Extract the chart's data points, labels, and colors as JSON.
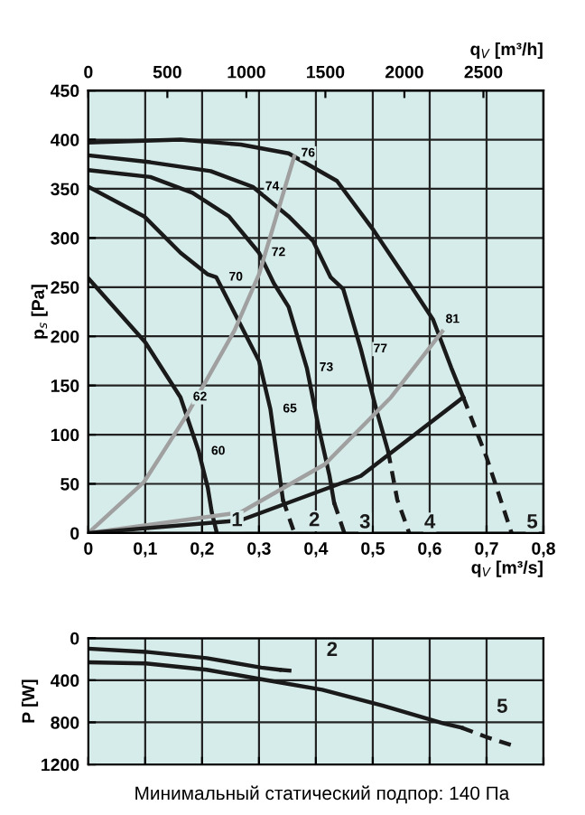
{
  "chart_data": [
    {
      "type": "line",
      "xlabel": "q$_{V}$ [m³/s]",
      "x2label": "q$_{V}$ [m³/h]",
      "ylabel": "p$_{s}$ [Pa]",
      "xlim": [
        0,
        0.8
      ],
      "ylim": [
        0,
        450
      ],
      "xticks": [
        0,
        {
          "value": 0.1,
          "label": "0,1"
        },
        {
          "value": 0.2,
          "label": "0,2"
        },
        {
          "value": 0.3,
          "label": "0,3"
        },
        {
          "value": 0.4,
          "label": "0,4"
        },
        {
          "value": 0.5,
          "label": "0,5"
        },
        {
          "value": 0.6,
          "label": "0,6"
        },
        {
          "value": 0.7,
          "label": "0,7"
        },
        {
          "value": 0.8,
          "label": "0,8"
        }
      ],
      "x2lim": [
        0,
        2880
      ],
      "x2ticks": [
        0,
        500,
        1000,
        1500,
        2000,
        2500
      ],
      "yticks": [
        0,
        50,
        100,
        150,
        200,
        250,
        300,
        350,
        400,
        450
      ],
      "grid": true,
      "marker": "none",
      "series": [
        {
          "name": "1",
          "color": "#1a1a1a",
          "x": [
            0,
            0.1,
            0.162,
            0.194,
            0.21,
            0.217,
            0.225
          ],
          "values": [
            259,
            194,
            138,
            83,
            46,
            21,
            2
          ]
        },
        {
          "color": "#1a1a1a",
          "x": [
            0,
            0.098,
            0.162,
            0.21,
            0.225,
            0.3,
            0.32,
            0.342
          ],
          "values": [
            352,
            322,
            285,
            263,
            260,
            175,
            126,
            34
          ]
        },
        {
          "name": "2",
          "color": "#1a1a1a",
          "line_style": "dashed",
          "x": [
            0.342,
            0.361
          ],
          "values": [
            34,
            2
          ]
        },
        {
          "color": "#1a1a1a",
          "x": [
            0,
            0.109,
            0.183,
            0.247,
            0.3,
            0.326,
            0.352,
            0.384,
            0.405,
            0.424,
            0.432
          ],
          "values": [
            369,
            362,
            346,
            322,
            285,
            254,
            230,
            168,
            107,
            58,
            31
          ]
        },
        {
          "name": "3",
          "color": "#1a1a1a",
          "line_style": "dashed",
          "x": [
            0.432,
            0.45
          ],
          "values": [
            31,
            0
          ]
        },
        {
          "color": "#1a1a1a",
          "x": [
            0,
            0.109,
            0.215,
            0.289,
            0.352,
            0.395,
            0.426,
            0.448,
            0.479,
            0.506,
            0.527
          ],
          "values": [
            384,
            377,
            368,
            352,
            322,
            297,
            260,
            248,
            187,
            126,
            83
          ]
        },
        {
          "name": "4",
          "color": "#1a1a1a",
          "line_style": "dashed",
          "x": [
            0.527,
            0.543,
            0.564
          ],
          "values": [
            83,
            34,
            0
          ]
        },
        {
          "color": "#1a1a1a",
          "x": [
            0,
            0.162,
            0.268,
            0.352,
            0.437,
            0.5,
            0.564,
            0.606,
            0.638,
            0.659
          ],
          "values": [
            397,
            400,
            395,
            386,
            358,
            309,
            254,
            217,
            168,
            138
          ]
        },
        {
          "name": "5",
          "color": "#1a1a1a",
          "line_style": "dashed",
          "x": [
            0.659,
            0.7,
            0.744
          ],
          "values": [
            138,
            77,
            0
          ]
        },
        {
          "color": "#a0a0a0",
          "x": [
            0,
            0.098,
            0.172,
            0.257,
            0.3,
            0.362
          ],
          "values": [
            0,
            52,
            119,
            206,
            263,
            383
          ]
        },
        {
          "color": "#a0a0a0",
          "x": [
            0,
            0.268,
            0.416,
            0.532,
            0.622
          ],
          "values": [
            0,
            21,
            70,
            138,
            205
          ]
        },
        {
          "color": "#1a1a1a",
          "x": [
            0,
            0.268,
            0.479,
            0.659
          ],
          "values": [
            0,
            13,
            58,
            138
          ]
        }
      ],
      "annotations": [
        {
          "text": "60",
          "x": 0.194,
          "y": 83
        },
        {
          "text": "62",
          "x": 0.162,
          "y": 138
        },
        {
          "text": "65",
          "x": 0.32,
          "y": 126
        },
        {
          "text": "73",
          "x": 0.384,
          "y": 168
        },
        {
          "text": "77",
          "x": 0.479,
          "y": 187
        },
        {
          "text": "81",
          "x": 0.606,
          "y": 217
        },
        {
          "text": "70",
          "x": 0.225,
          "y": 260
        },
        {
          "text": "72",
          "x": 0.3,
          "y": 285
        },
        {
          "text": "74",
          "x": 0.289,
          "y": 352
        },
        {
          "text": "76",
          "x": 0.352,
          "y": 386
        }
      ]
    },
    {
      "type": "line",
      "ylabel": "P [W]",
      "xlim": [
        0,
        0.8
      ],
      "ylim": [
        1200,
        0
      ],
      "xticks": [
        {
          "value": 0,
          "label": null
        },
        {
          "value": 0.1,
          "label": null
        },
        {
          "value": 0.2,
          "label": null
        },
        {
          "value": 0.3,
          "label": null
        },
        {
          "value": 0.4,
          "label": null
        },
        {
          "value": 0.5,
          "label": null
        },
        {
          "value": 0.6,
          "label": null
        },
        {
          "value": 0.7,
          "label": null
        },
        {
          "value": 0.8,
          "label": null
        }
      ],
      "yticks": [
        0,
        400,
        800,
        1200
      ],
      "tick_labels": "y",
      "grid": true,
      "marker": "none",
      "series": [
        {
          "color": "#1a1a1a",
          "x": [
            0,
            0.101,
            0.208,
            0.304,
            0.336
          ],
          "values": [
            100,
            130,
            190,
            280,
            300
          ]
        },
        {
          "name": "2",
          "color": "#1a1a1a",
          "line_style": "dashed",
          "x": [
            0.336,
            0.357
          ],
          "values": [
            300,
            310
          ]
        },
        {
          "name": "5",
          "color": "#1a1a1a",
          "x": [
            0,
            0.101,
            0.208,
            0.304,
            0.411,
            0.517,
            0.624,
            0.656
          ],
          "values": [
            230,
            240,
            300,
            390,
            490,
            640,
            810,
            850
          ]
        },
        {
          "color": "#1a1a1a",
          "line_style": "dashed",
          "x": [
            0.656,
            0.7,
            0.752
          ],
          "values": [
            850,
            940,
            1030
          ]
        }
      ],
      "annotations": [
        "Минимальный статический подпор: 140 Па"
      ]
    }
  ]
}
